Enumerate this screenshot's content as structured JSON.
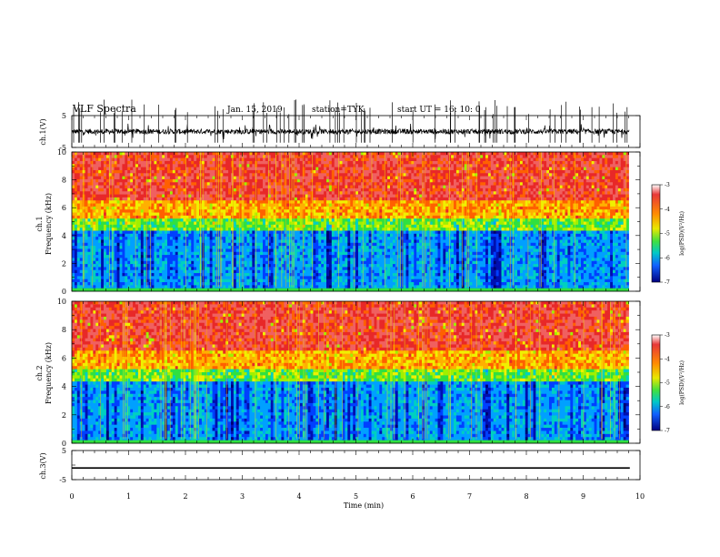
{
  "header": {
    "title": "VLF Spectra",
    "date": "Jan. 15, 2019",
    "station": "station=TYK",
    "start": "start UT =  16: 10: 0"
  },
  "chart_data": [
    {
      "type": "line",
      "name": "ch.1 waveform",
      "ylabel": "ch.1(V)",
      "yticks": [
        "5",
        "-5"
      ],
      "ylim": [
        -5,
        5
      ],
      "xlim": [
        0,
        10
      ],
      "baseline": 0
    },
    {
      "type": "heatmap",
      "name": "ch.1 spectrogram",
      "ylabel": "ch.1\nFrequency (kHz)",
      "yticks": [
        "0",
        "2",
        "4",
        "6",
        "8",
        "10"
      ],
      "ylim": [
        0,
        10
      ],
      "xlim": [
        0,
        9.8
      ],
      "colorbar": {
        "label": "log(PSD)(V²/Hz)",
        "ticks": [
          "-3",
          "-4",
          "-5",
          "-6",
          "-7"
        ],
        "range": [
          -7,
          -3
        ]
      }
    },
    {
      "type": "heatmap",
      "name": "ch.2 spectrogram",
      "ylabel": "ch.2\nFrequency (kHz)",
      "yticks": [
        "0",
        "2",
        "4",
        "6",
        "8",
        "10"
      ],
      "ylim": [
        0,
        10
      ],
      "xlim": [
        0,
        9.8
      ],
      "colorbar": {
        "label": "log(PSD)(V²/Hz)",
        "ticks": [
          "-3",
          "-4",
          "-5",
          "-6",
          "-7"
        ],
        "range": [
          -7,
          -3
        ]
      }
    },
    {
      "type": "line",
      "name": "ch.3 waveform",
      "ylabel": "ch.3(V)",
      "yticks": [
        "5",
        "-5"
      ],
      "ylim": [
        -5,
        5
      ],
      "xlim": [
        0,
        10
      ],
      "baseline": -1
    }
  ],
  "xaxis": {
    "label": "Time  (min)",
    "ticks": [
      "0",
      "1",
      "2",
      "3",
      "4",
      "5",
      "6",
      "7",
      "8",
      "9",
      "10"
    ]
  },
  "colorbar_colors": [
    "#ffffff",
    "#e03030",
    "#ff8000",
    "#e0e000",
    "#30e030",
    "#00c0c0",
    "#1060ff",
    "#000090"
  ]
}
